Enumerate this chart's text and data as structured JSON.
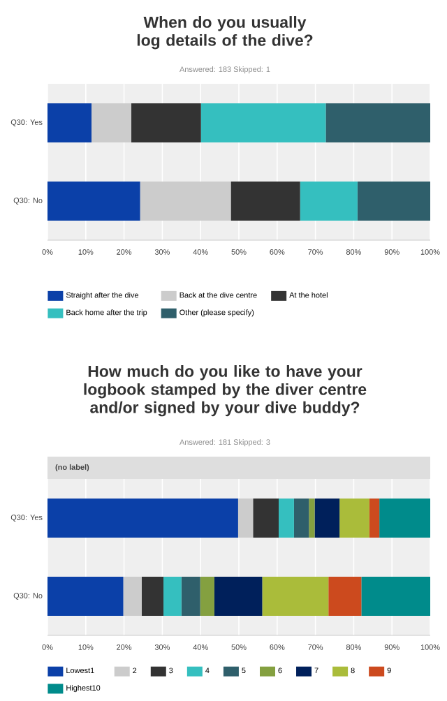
{
  "chart_data": [
    {
      "type": "bar",
      "orientation": "horizontal",
      "stacked": true,
      "title": "When do you usually log details of the dive?",
      "subtitle": "Answered: 183    Skipped: 1",
      "categories": [
        "Q30: Yes",
        "Q30: No"
      ],
      "xlim": [
        0,
        100
      ],
      "xticks": [
        {
          "value": 0,
          "label": "0%"
        },
        {
          "value": 10,
          "label": "10%"
        },
        {
          "value": 20,
          "label": "20%"
        },
        {
          "value": 30,
          "label": "30%"
        },
        {
          "value": 40,
          "label": "40%"
        },
        {
          "value": 50,
          "label": "50%"
        },
        {
          "value": 60,
          "label": "60%"
        },
        {
          "value": 70,
          "label": "70%"
        },
        {
          "value": 80,
          "label": "80%"
        },
        {
          "value": 90,
          "label": "90%"
        },
        {
          "value": 100,
          "label": "100%"
        }
      ],
      "grid": "x",
      "legend": "bottom",
      "series": [
        {
          "name": "Straight after the dive",
          "color": "#0b40a8",
          "values": [
            11.5,
            24.2
          ]
        },
        {
          "name": "Back at the dive centre",
          "color": "#cccccc",
          "values": [
            10.4,
            23.7
          ]
        },
        {
          "name": "At the hotel",
          "color": "#333333",
          "values": [
            18.2,
            18.1
          ]
        },
        {
          "name": "Back home after the trip",
          "color": "#35bfbf",
          "values": [
            32.6,
            15.0
          ]
        },
        {
          "name": "Other (please specify)",
          "color": "#2f5f6b",
          "values": [
            27.3,
            19.0
          ]
        }
      ]
    },
    {
      "type": "bar",
      "orientation": "horizontal",
      "stacked": true,
      "title": "How much do you like to have your logbook stamped by the diver centre and/or signed by your dive buddy?",
      "subtitle": "Answered: 181    Skipped: 3",
      "annotations": [
        "(no label)"
      ],
      "categories": [
        "Q30: Yes",
        "Q30: No"
      ],
      "xlim": [
        0,
        100
      ],
      "xticks": [
        {
          "value": 0,
          "label": "0%"
        },
        {
          "value": 10,
          "label": "10%"
        },
        {
          "value": 20,
          "label": "20%"
        },
        {
          "value": 30,
          "label": "30%"
        },
        {
          "value": 40,
          "label": "40%"
        },
        {
          "value": 50,
          "label": "50%"
        },
        {
          "value": 60,
          "label": "60%"
        },
        {
          "value": 70,
          "label": "70%"
        },
        {
          "value": 80,
          "label": "80%"
        },
        {
          "value": 90,
          "label": "90%"
        },
        {
          "value": 100,
          "label": "100%"
        }
      ],
      "grid": "x",
      "legend": "bottom",
      "series": [
        {
          "name": "Lowest1",
          "color": "#0b40a8",
          "values": [
            49.8,
            19.8
          ]
        },
        {
          "name": "2",
          "color": "#cccccc",
          "values": [
            3.9,
            4.8
          ]
        },
        {
          "name": "3",
          "color": "#333333",
          "values": [
            6.7,
            5.7
          ]
        },
        {
          "name": "4",
          "color": "#35bfbf",
          "values": [
            4.0,
            4.7
          ]
        },
        {
          "name": "5",
          "color": "#2f5f6b",
          "values": [
            3.9,
            4.9
          ]
        },
        {
          "name": "6",
          "color": "#84a040",
          "values": [
            1.5,
            3.7
          ]
        },
        {
          "name": "7",
          "color": "#00205b",
          "values": [
            6.5,
            12.5
          ]
        },
        {
          "name": "8",
          "color": "#aabc3a",
          "values": [
            7.8,
            17.3
          ]
        },
        {
          "name": "9",
          "color": "#cc4a1e",
          "values": [
            2.6,
            8.6
          ]
        },
        {
          "name": "Highest10",
          "color": "#008b8b",
          "values": [
            13.3,
            18.0
          ]
        }
      ]
    }
  ]
}
